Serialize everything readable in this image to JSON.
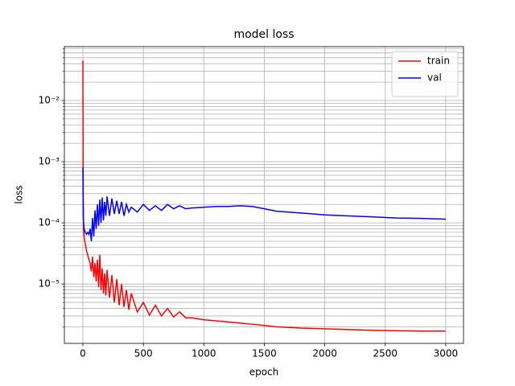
{
  "chart_data": {
    "type": "line",
    "title": "model loss",
    "x_label": "epoch",
    "y_label": "loss",
    "x": [
      0,
      3,
      6,
      10,
      20,
      30,
      40,
      50,
      60,
      70,
      80,
      90,
      100,
      110,
      120,
      130,
      140,
      150,
      160,
      170,
      180,
      190,
      200,
      220,
      240,
      260,
      280,
      300,
      320,
      340,
      360,
      380,
      400,
      450,
      500,
      550,
      600,
      650,
      700,
      750,
      800,
      850,
      900,
      1000,
      1100,
      1200,
      1300,
      1400,
      1500,
      1600,
      1700,
      1800,
      2000,
      2200,
      2400,
      2600,
      2800,
      3000
    ],
    "series": [
      {
        "name": "train",
        "color": "#ff0000",
        "values": [
          0.045,
          0.0002,
          8e-05,
          6e-05,
          4.5e-05,
          3.5e-05,
          3e-05,
          2.5e-05,
          2.2e-05,
          1.6e-05,
          2.8e-05,
          1.3e-05,
          2.2e-05,
          1.1e-05,
          2.5e-05,
          9e-06,
          3e-05,
          8e-06,
          1.8e-05,
          7e-06,
          1.5e-05,
          6.5e-06,
          1.7e-05,
          6e-06,
          1.4e-05,
          5e-06,
          1.2e-05,
          4.5e-06,
          1e-05,
          4.2e-06,
          8e-06,
          3.8e-06,
          7e-06,
          3.5e-06,
          5e-06,
          3.1e-06,
          4.5e-06,
          3e-06,
          4e-06,
          2.9e-06,
          3.5e-06,
          2.8e-06,
          2.8e-06,
          2.6e-06,
          2.5e-06,
          2.4e-06,
          2.3e-06,
          2.2e-06,
          2.1e-06,
          2e-06,
          1.95e-06,
          1.9e-06,
          1.85e-06,
          1.8e-06,
          1.75e-06,
          1.72e-06,
          1.7e-06,
          1.7e-06
        ]
      },
      {
        "name": "val",
        "color": "#0000ff",
        "values": [
          0.0008,
          0.00013,
          0.0001,
          8e-05,
          7e-05,
          6.5e-05,
          7e-05,
          6.5e-05,
          8e-05,
          5e-05,
          0.00012,
          6e-05,
          0.00016,
          8e-05,
          0.0002,
          9e-05,
          0.00024,
          0.0001,
          0.00026,
          0.00011,
          0.00022,
          0.00013,
          0.00027,
          0.00013,
          0.00025,
          0.00014,
          0.00023,
          0.00014,
          0.00022,
          0.00013,
          0.0002,
          0.00015,
          0.00018,
          0.00015,
          0.0002,
          0.00016,
          0.00019,
          0.00016,
          0.0002,
          0.00017,
          0.00019,
          0.00017,
          0.000175,
          0.00018,
          0.000185,
          0.000185,
          0.00019,
          0.000185,
          0.00017,
          0.000155,
          0.00015,
          0.000145,
          0.000135,
          0.00013,
          0.000125,
          0.00012,
          0.000118,
          0.000115
        ]
      }
    ],
    "xlim": [
      -153,
      3147
    ],
    "xticks": [
      0,
      500,
      1000,
      1500,
      2000,
      2500,
      3000
    ],
    "ylim": [
      1.07e-06,
      0.076
    ],
    "log_y": true,
    "grid": true,
    "legend": "upper right",
    "yticks": [
      {
        "value": 1e-05,
        "label": "10⁻⁵"
      },
      {
        "value": 0.0001,
        "label": "10⁻⁴"
      },
      {
        "value": 0.001,
        "label": "10⁻³"
      },
      {
        "value": 0.01,
        "label": "10⁻²"
      }
    ],
    "yminorticks": [
      2e-06,
      3e-06,
      4e-06,
      5e-06,
      6e-06,
      7e-06,
      8e-06,
      9e-06,
      2e-05,
      3e-05,
      4e-05,
      5e-05,
      6e-05,
      7e-05,
      8e-05,
      9e-05,
      0.0002,
      0.0003,
      0.0004,
      0.0005,
      0.0006,
      0.0007,
      0.0008,
      0.0009,
      0.002,
      0.003,
      0.004,
      0.005,
      0.006,
      0.007,
      0.008,
      0.009,
      0.02,
      0.03,
      0.04,
      0.05,
      0.06,
      0.07
    ]
  }
}
